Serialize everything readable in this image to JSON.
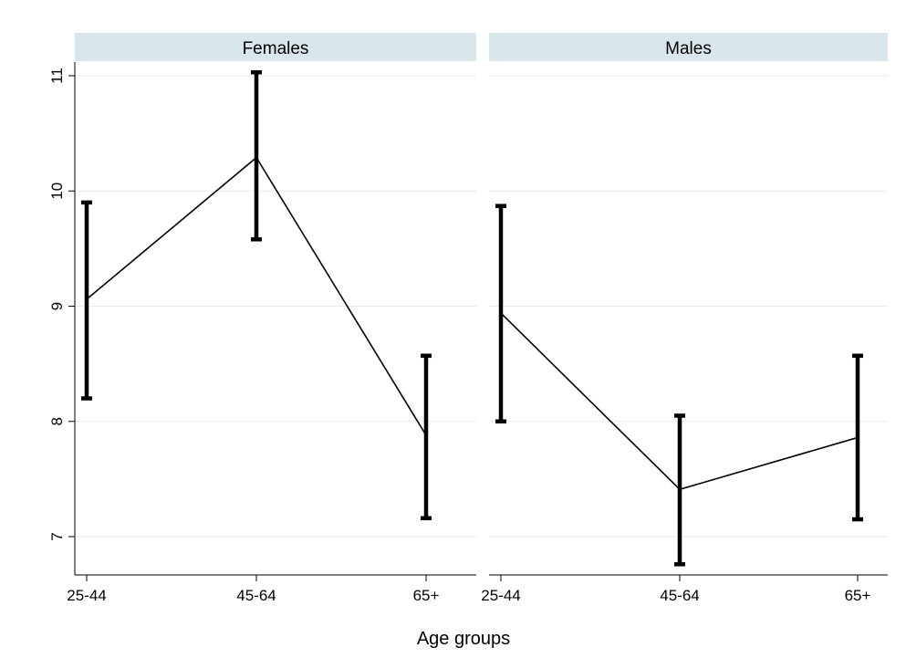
{
  "chart_data": {
    "type": "line",
    "x_title": "Age groups",
    "categories": [
      "25-44",
      "45-64",
      "65+"
    ],
    "ylim": [
      6.7,
      11.1
    ],
    "yticks": [
      7,
      8,
      9,
      10,
      11
    ],
    "grid": true,
    "panels": [
      {
        "label": "Females",
        "mean": [
          9.06,
          10.29,
          7.88
        ],
        "ci_low": [
          8.2,
          9.58,
          7.16
        ],
        "ci_high": [
          9.9,
          11.03,
          8.57
        ]
      },
      {
        "label": "Males",
        "mean": [
          8.94,
          7.41,
          7.86
        ],
        "ci_low": [
          8.0,
          6.76,
          7.15
        ],
        "ci_high": [
          9.87,
          8.05,
          8.57
        ]
      }
    ]
  },
  "colors": {
    "strip_fill": "#d9e6eb",
    "line": "#000000",
    "grid": "#eaeaea",
    "axis": "#000000"
  }
}
